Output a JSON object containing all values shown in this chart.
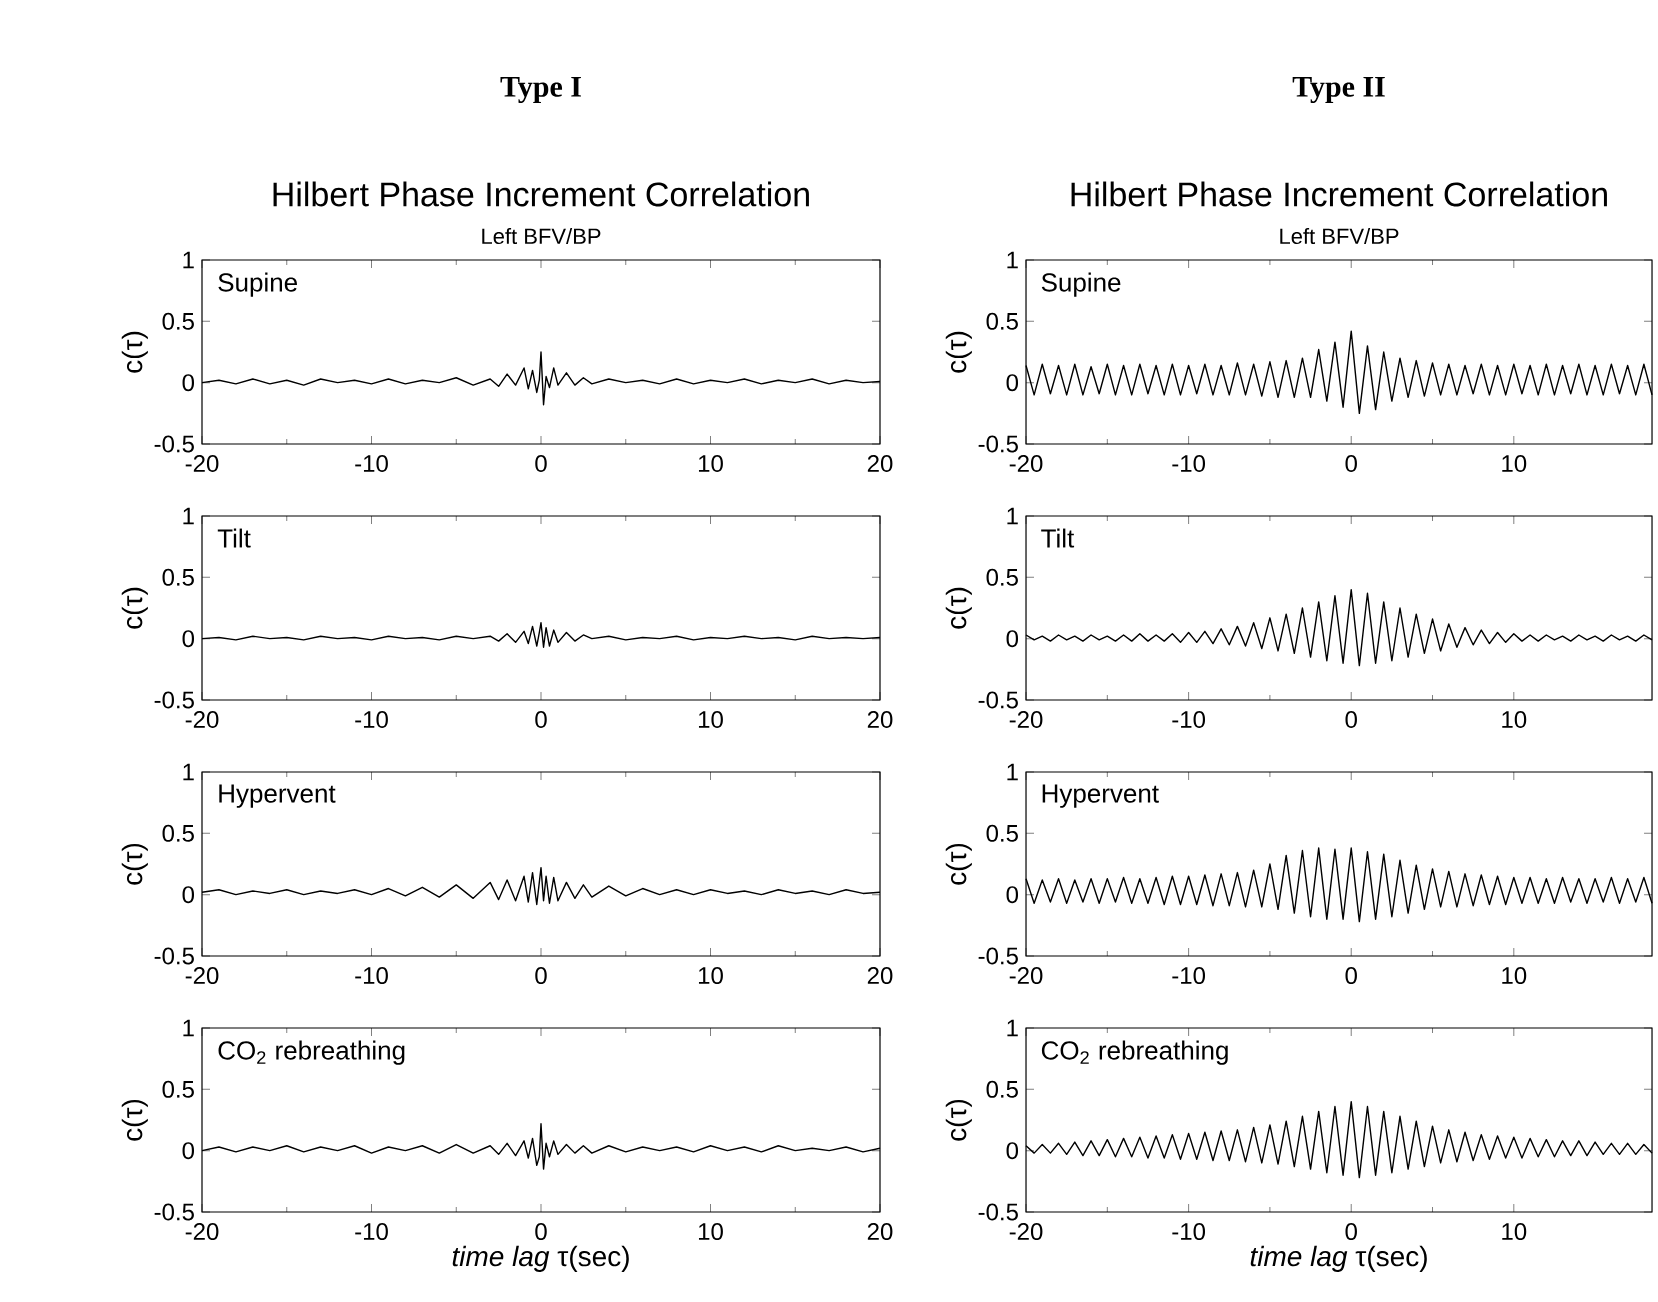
{
  "chart_data": [
    {
      "type": "line",
      "title": "Hilbert Phase Increment Correlation",
      "subtitle": "Left BFV/BP",
      "annotations": [
        "Type I",
        "Supine"
      ],
      "ylabel": "c(τ)",
      "xlim": [
        -20,
        20
      ],
      "ylim": [
        -0.5,
        1
      ],
      "xticks": [
        -20,
        -10,
        0,
        10,
        20
      ],
      "yticks": [
        -0.5,
        0,
        0.5,
        1
      ],
      "x": [
        -20,
        -19,
        -18,
        -17,
        -16,
        -15,
        -14,
        -13,
        -12,
        -11,
        -10,
        -9,
        -8,
        -7,
        -6,
        -5,
        -4,
        -3,
        -2.5,
        -2,
        -1.5,
        -1,
        -0.75,
        -0.5,
        -0.25,
        -0.1,
        0,
        0.15,
        0.3,
        0.5,
        0.75,
        1,
        1.5,
        2,
        2.5,
        3,
        4,
        5,
        6,
        7,
        8,
        9,
        10,
        11,
        12,
        13,
        14,
        15,
        16,
        17,
        18,
        19,
        20
      ],
      "series": [
        {
          "color": "#000000",
          "values": [
            0,
            0.02,
            -0.01,
            0.03,
            -0.01,
            0.02,
            -0.02,
            0.03,
            0,
            0.02,
            -0.01,
            0.03,
            -0.01,
            0.02,
            0,
            0.04,
            -0.02,
            0.03,
            -0.03,
            0.07,
            -0.02,
            0.12,
            -0.05,
            0.1,
            -0.08,
            0.02,
            0.25,
            -0.18,
            0.05,
            -0.04,
            0.12,
            -0.02,
            0.08,
            -0.02,
            0.04,
            -0.01,
            0.03,
            0,
            0.02,
            -0.01,
            0.03,
            -0.01,
            0.02,
            0,
            0.03,
            -0.01,
            0.02,
            0,
            0.03,
            -0.01,
            0.02,
            0,
            0.01
          ]
        }
      ]
    },
    {
      "type": "line",
      "title": "Hilbert Phase Increment Correlation",
      "subtitle": "Left BFV/BP",
      "annotations": [
        "Type II",
        "Supine"
      ],
      "ylabel": "c(τ)",
      "xlim": [
        -20,
        18.5
      ],
      "ylim": [
        -0.5,
        1
      ],
      "xticks": [
        -20,
        -10,
        0,
        10
      ],
      "yticks": [
        -0.5,
        0,
        0.5,
        1
      ],
      "x": [
        -20,
        -19.5,
        -19,
        -18.5,
        -18,
        -17.5,
        -17,
        -16.5,
        -16,
        -15.5,
        -15,
        -14.5,
        -14,
        -13.5,
        -13,
        -12.5,
        -12,
        -11.5,
        -11,
        -10.5,
        -10,
        -9.5,
        -9,
        -8.5,
        -8,
        -7.5,
        -7,
        -6.5,
        -6,
        -5.5,
        -5,
        -4.5,
        -4,
        -3.5,
        -3,
        -2.5,
        -2,
        -1.5,
        -1,
        -0.5,
        0,
        0.5,
        1,
        1.5,
        2,
        2.5,
        3,
        3.5,
        4,
        4.5,
        5,
        5.5,
        6,
        6.5,
        7,
        7.5,
        8,
        8.5,
        9,
        9.5,
        10,
        10.5,
        11,
        11.5,
        12,
        12.5,
        13,
        13.5,
        14,
        14.5,
        15,
        15.5,
        16,
        16.5,
        17,
        17.5,
        18,
        18.5
      ],
      "series": [
        {
          "color": "#000000",
          "values": [
            0.14,
            -0.1,
            0.15,
            -0.09,
            0.14,
            -0.1,
            0.15,
            -0.1,
            0.13,
            -0.09,
            0.15,
            -0.1,
            0.14,
            -0.1,
            0.15,
            -0.09,
            0.14,
            -0.1,
            0.15,
            -0.1,
            0.14,
            -0.09,
            0.15,
            -0.1,
            0.14,
            -0.1,
            0.16,
            -0.1,
            0.15,
            -0.11,
            0.17,
            -0.12,
            0.18,
            -0.12,
            0.2,
            -0.12,
            0.27,
            -0.15,
            0.33,
            -0.2,
            0.42,
            -0.25,
            0.3,
            -0.22,
            0.25,
            -0.15,
            0.2,
            -0.12,
            0.18,
            -0.11,
            0.16,
            -0.1,
            0.15,
            -0.1,
            0.14,
            -0.09,
            0.15,
            -0.1,
            0.14,
            -0.1,
            0.15,
            -0.09,
            0.14,
            -0.1,
            0.15,
            -0.1,
            0.14,
            -0.09,
            0.15,
            -0.1,
            0.14,
            -0.1,
            0.15,
            -0.09,
            0.14,
            -0.1,
            0.15,
            -0.1
          ]
        }
      ]
    },
    {
      "type": "line",
      "annotations": [
        "Tilt"
      ],
      "ylabel": "c(τ)",
      "xlim": [
        -20,
        20
      ],
      "ylim": [
        -0.5,
        1
      ],
      "xticks": [
        -20,
        -10,
        0,
        10,
        20
      ],
      "yticks": [
        -0.5,
        0,
        0.5,
        1
      ],
      "x": [
        -20,
        -19,
        -18,
        -17,
        -16,
        -15,
        -14,
        -13,
        -12,
        -11,
        -10,
        -9,
        -8,
        -7,
        -6,
        -5,
        -4,
        -3,
        -2.5,
        -2,
        -1.5,
        -1,
        -0.75,
        -0.5,
        -0.25,
        -0.1,
        0,
        0.15,
        0.3,
        0.5,
        0.75,
        1,
        1.5,
        2,
        2.5,
        3,
        4,
        5,
        6,
        7,
        8,
        9,
        10,
        11,
        12,
        13,
        14,
        15,
        16,
        17,
        18,
        19,
        20
      ],
      "series": [
        {
          "color": "#000000",
          "values": [
            0,
            0.01,
            -0.01,
            0.02,
            0,
            0.01,
            -0.01,
            0.02,
            0,
            0.01,
            -0.01,
            0.02,
            0,
            0.01,
            -0.01,
            0.02,
            0,
            0.02,
            -0.02,
            0.04,
            -0.03,
            0.06,
            -0.04,
            0.1,
            -0.06,
            0.05,
            0.13,
            -0.07,
            0.09,
            -0.06,
            0.07,
            -0.03,
            0.05,
            -0.02,
            0.03,
            0,
            0.02,
            -0.01,
            0.01,
            0,
            0.02,
            -0.01,
            0.01,
            0,
            0.02,
            0,
            0.01,
            -0.01,
            0.02,
            0,
            0.01,
            0,
            0.01
          ]
        }
      ]
    },
    {
      "type": "line",
      "annotations": [
        "Tilt"
      ],
      "ylabel": "c(τ)",
      "xlim": [
        -20,
        18.5
      ],
      "ylim": [
        -0.5,
        1
      ],
      "xticks": [
        -20,
        -10,
        0,
        10
      ],
      "yticks": [
        -0.5,
        0,
        0.5,
        1
      ],
      "x": [
        -20,
        -19.5,
        -19,
        -18.5,
        -18,
        -17.5,
        -17,
        -16.5,
        -16,
        -15.5,
        -15,
        -14.5,
        -14,
        -13.5,
        -13,
        -12.5,
        -12,
        -11.5,
        -11,
        -10.5,
        -10,
        -9.5,
        -9,
        -8.5,
        -8,
        -7.5,
        -7,
        -6.5,
        -6,
        -5.5,
        -5,
        -4.5,
        -4,
        -3.5,
        -3,
        -2.5,
        -2,
        -1.5,
        -1,
        -0.5,
        0,
        0.5,
        1,
        1.5,
        2,
        2.5,
        3,
        3.5,
        4,
        4.5,
        5,
        5.5,
        6,
        6.5,
        7,
        7.5,
        8,
        8.5,
        9,
        9.5,
        10,
        10.5,
        11,
        11.5,
        12,
        12.5,
        13,
        13.5,
        14,
        14.5,
        15,
        15.5,
        16,
        16.5,
        17,
        17.5,
        18,
        18.5
      ],
      "series": [
        {
          "color": "#000000",
          "values": [
            0.03,
            -0.01,
            0.02,
            -0.02,
            0.03,
            -0.01,
            0.02,
            -0.02,
            0.03,
            -0.01,
            0.02,
            -0.02,
            0.03,
            -0.02,
            0.04,
            -0.02,
            0.03,
            -0.02,
            0.04,
            -0.03,
            0.05,
            -0.03,
            0.06,
            -0.04,
            0.08,
            -0.05,
            0.1,
            -0.06,
            0.13,
            -0.08,
            0.17,
            -0.1,
            0.2,
            -0.12,
            0.25,
            -0.15,
            0.3,
            -0.18,
            0.35,
            -0.2,
            0.4,
            -0.22,
            0.37,
            -0.2,
            0.3,
            -0.18,
            0.25,
            -0.15,
            0.2,
            -0.12,
            0.16,
            -0.1,
            0.12,
            -0.07,
            0.09,
            -0.05,
            0.07,
            -0.04,
            0.05,
            -0.03,
            0.04,
            -0.02,
            0.03,
            -0.02,
            0.03,
            -0.01,
            0.02,
            -0.02,
            0.03,
            -0.01,
            0.02,
            -0.02,
            0.03,
            -0.01,
            0.02,
            -0.02,
            0.03,
            -0.01
          ]
        }
      ]
    },
    {
      "type": "line",
      "annotations": [
        "Hypervent"
      ],
      "ylabel": "c(τ)",
      "xlim": [
        -20,
        20
      ],
      "ylim": [
        -0.5,
        1
      ],
      "xticks": [
        -20,
        -10,
        0,
        10,
        20
      ],
      "yticks": [
        -0.5,
        0,
        0.5,
        1
      ],
      "x": [
        -20,
        -19,
        -18,
        -17,
        -16,
        -15,
        -14,
        -13,
        -12,
        -11,
        -10,
        -9,
        -8,
        -7,
        -6,
        -5,
        -4,
        -3,
        -2.5,
        -2,
        -1.5,
        -1,
        -0.75,
        -0.5,
        -0.25,
        -0.1,
        0,
        0.15,
        0.3,
        0.5,
        0.75,
        1,
        1.5,
        2,
        2.5,
        3,
        4,
        5,
        6,
        7,
        8,
        9,
        10,
        11,
        12,
        13,
        14,
        15,
        16,
        17,
        18,
        19,
        20
      ],
      "series": [
        {
          "color": "#000000",
          "values": [
            0.02,
            0.04,
            0,
            0.03,
            0.01,
            0.04,
            0,
            0.03,
            0.01,
            0.04,
            0,
            0.05,
            -0.01,
            0.06,
            -0.02,
            0.08,
            -0.03,
            0.1,
            -0.04,
            0.12,
            -0.05,
            0.15,
            -0.06,
            0.18,
            -0.08,
            0.1,
            0.22,
            -0.05,
            0.15,
            -0.07,
            0.14,
            -0.05,
            0.1,
            -0.03,
            0.08,
            -0.02,
            0.07,
            -0.01,
            0.05,
            0,
            0.04,
            0,
            0.04,
            0.01,
            0.03,
            0,
            0.04,
            0.01,
            0.03,
            0,
            0.04,
            0.01,
            0.02
          ]
        }
      ]
    },
    {
      "type": "line",
      "annotations": [
        "Hypervent"
      ],
      "ylabel": "c(τ)",
      "xlim": [
        -20,
        18.5
      ],
      "ylim": [
        -0.5,
        1
      ],
      "xticks": [
        -20,
        -10,
        0,
        10
      ],
      "yticks": [
        -0.5,
        0,
        0.5,
        1
      ],
      "x": [
        -20,
        -19.5,
        -19,
        -18.5,
        -18,
        -17.5,
        -17,
        -16.5,
        -16,
        -15.5,
        -15,
        -14.5,
        -14,
        -13.5,
        -13,
        -12.5,
        -12,
        -11.5,
        -11,
        -10.5,
        -10,
        -9.5,
        -9,
        -8.5,
        -8,
        -7.5,
        -7,
        -6.5,
        -6,
        -5.5,
        -5,
        -4.5,
        -4,
        -3.5,
        -3,
        -2.5,
        -2,
        -1.5,
        -1,
        -0.5,
        0,
        0.5,
        1,
        1.5,
        2,
        2.5,
        3,
        3.5,
        4,
        4.5,
        5,
        5.5,
        6,
        6.5,
        7,
        7.5,
        8,
        8.5,
        9,
        9.5,
        10,
        10.5,
        11,
        11.5,
        12,
        12.5,
        13,
        13.5,
        14,
        14.5,
        15,
        15.5,
        16,
        16.5,
        17,
        17.5,
        18,
        18.5
      ],
      "series": [
        {
          "color": "#000000",
          "values": [
            0.13,
            -0.07,
            0.12,
            -0.06,
            0.13,
            -0.07,
            0.12,
            -0.06,
            0.13,
            -0.07,
            0.13,
            -0.06,
            0.14,
            -0.07,
            0.13,
            -0.07,
            0.14,
            -0.08,
            0.15,
            -0.08,
            0.15,
            -0.08,
            0.16,
            -0.09,
            0.17,
            -0.09,
            0.18,
            -0.1,
            0.2,
            -0.1,
            0.25,
            -0.12,
            0.32,
            -0.15,
            0.36,
            -0.18,
            0.38,
            -0.2,
            0.37,
            -0.2,
            0.38,
            -0.22,
            0.35,
            -0.2,
            0.33,
            -0.18,
            0.28,
            -0.15,
            0.24,
            -0.12,
            0.21,
            -0.1,
            0.19,
            -0.1,
            0.17,
            -0.09,
            0.16,
            -0.08,
            0.15,
            -0.08,
            0.14,
            -0.07,
            0.14,
            -0.07,
            0.13,
            -0.07,
            0.14,
            -0.06,
            0.13,
            -0.07,
            0.13,
            -0.06,
            0.14,
            -0.07,
            0.13,
            -0.06,
            0.14,
            -0.07
          ]
        }
      ]
    },
    {
      "type": "line",
      "annotations": [
        "CO$_{2}$ rebreathing"
      ],
      "ylabel": "c(τ)",
      "xlabel": "*time lag* τ(sec)",
      "xlim": [
        -20,
        20
      ],
      "ylim": [
        -0.5,
        1
      ],
      "xticks": [
        -20,
        -10,
        0,
        10,
        20
      ],
      "yticks": [
        -0.5,
        0,
        0.5,
        1
      ],
      "x": [
        -20,
        -19,
        -18,
        -17,
        -16,
        -15,
        -14,
        -13,
        -12,
        -11,
        -10,
        -9,
        -8,
        -7,
        -6,
        -5,
        -4,
        -3,
        -2.5,
        -2,
        -1.5,
        -1,
        -0.75,
        -0.5,
        -0.25,
        -0.1,
        0,
        0.15,
        0.3,
        0.5,
        0.75,
        1,
        1.5,
        2,
        2.5,
        3,
        4,
        5,
        6,
        7,
        8,
        9,
        10,
        11,
        12,
        13,
        14,
        15,
        16,
        17,
        18,
        19,
        20
      ],
      "series": [
        {
          "color": "#000000",
          "values": [
            0,
            0.03,
            -0.01,
            0.03,
            0,
            0.04,
            -0.01,
            0.03,
            0,
            0.04,
            -0.02,
            0.03,
            0,
            0.04,
            -0.02,
            0.05,
            -0.02,
            0.04,
            -0.03,
            0.06,
            -0.04,
            0.08,
            -0.06,
            0.1,
            -0.12,
            -0.05,
            0.22,
            -0.15,
            0.06,
            -0.05,
            0.08,
            -0.03,
            0.05,
            -0.02,
            0.04,
            -0.02,
            0.04,
            -0.01,
            0.03,
            0,
            0.03,
            -0.01,
            0.04,
            0,
            0.03,
            -0.01,
            0.04,
            0,
            0.02,
            0,
            0.03,
            -0.01,
            0.02
          ]
        }
      ]
    },
    {
      "type": "line",
      "annotations": [
        "CO$_{2}$ rebreathing"
      ],
      "ylabel": "c(τ)",
      "xlabel": "*time lag* τ(sec)",
      "xlim": [
        -20,
        18.5
      ],
      "ylim": [
        -0.5,
        1
      ],
      "xticks": [
        -20,
        -10,
        0,
        10
      ],
      "yticks": [
        -0.5,
        0,
        0.5,
        1
      ],
      "x": [
        -20,
        -19.5,
        -19,
        -18.5,
        -18,
        -17.5,
        -17,
        -16.5,
        -16,
        -15.5,
        -15,
        -14.5,
        -14,
        -13.5,
        -13,
        -12.5,
        -12,
        -11.5,
        -11,
        -10.5,
        -10,
        -9.5,
        -9,
        -8.5,
        -8,
        -7.5,
        -7,
        -6.5,
        -6,
        -5.5,
        -5,
        -4.5,
        -4,
        -3.5,
        -3,
        -2.5,
        -2,
        -1.5,
        -1,
        -0.5,
        0,
        0.5,
        1,
        1.5,
        2,
        2.5,
        3,
        3.5,
        4,
        4.5,
        5,
        5.5,
        6,
        6.5,
        7,
        7.5,
        8,
        8.5,
        9,
        9.5,
        10,
        10.5,
        11,
        11.5,
        12,
        12.5,
        13,
        13.5,
        14,
        14.5,
        15,
        15.5,
        16,
        16.5,
        17,
        17.5,
        18,
        18.5
      ],
      "series": [
        {
          "color": "#000000",
          "values": [
            0.04,
            -0.02,
            0.05,
            -0.02,
            0.06,
            -0.03,
            0.07,
            -0.04,
            0.08,
            -0.04,
            0.09,
            -0.05,
            0.1,
            -0.05,
            0.11,
            -0.06,
            0.12,
            -0.06,
            0.13,
            -0.07,
            0.14,
            -0.07,
            0.15,
            -0.08,
            0.16,
            -0.08,
            0.17,
            -0.09,
            0.19,
            -0.1,
            0.21,
            -0.11,
            0.24,
            -0.13,
            0.28,
            -0.15,
            0.32,
            -0.18,
            0.36,
            -0.2,
            0.4,
            -0.22,
            0.36,
            -0.2,
            0.32,
            -0.18,
            0.28,
            -0.15,
            0.24,
            -0.13,
            0.2,
            -0.1,
            0.17,
            -0.09,
            0.15,
            -0.08,
            0.13,
            -0.07,
            0.12,
            -0.06,
            0.11,
            -0.06,
            0.1,
            -0.05,
            0.09,
            -0.05,
            0.08,
            -0.04,
            0.08,
            -0.04,
            0.07,
            -0.03,
            0.06,
            -0.03,
            0.06,
            -0.03,
            0.05,
            -0.02
          ]
        }
      ]
    }
  ]
}
